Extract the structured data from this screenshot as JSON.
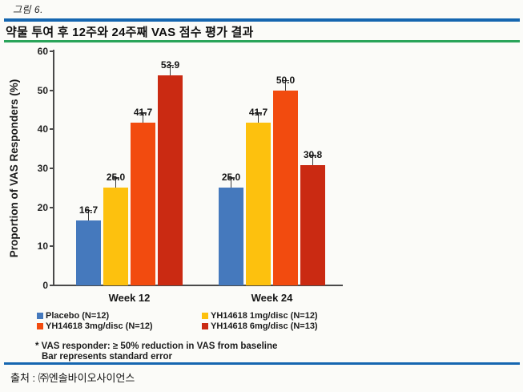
{
  "figure": {
    "caption": "그림 6.",
    "title": "약물 투여 후 12주와 24주째 VAS 점수 평가 결과",
    "source": "출처 : ㈜엔솔바이오사이언스"
  },
  "footnotes": {
    "line1": "* VAS responder: ≥ 50% reduction in VAS from baseline",
    "line2": "Bar represents standard error"
  },
  "rule_colors": {
    "top_blue": "#1566b0",
    "green": "#2aa45a",
    "bottom_blue": "#1566b0"
  },
  "chart_data": {
    "type": "bar",
    "title": "",
    "categories": [
      "Week 12",
      "Week 24"
    ],
    "series": [
      {
        "name": "Placebo (N=12)",
        "color": "#4579bd",
        "values": [
          16.7,
          25.0
        ]
      },
      {
        "name": "YH14618 1mg/disc (N=12)",
        "color": "#fdc10e",
        "values": [
          25.0,
          41.7
        ]
      },
      {
        "name": "YH14618 3mg/disc (N=12)",
        "color": "#f24b0f",
        "values": [
          41.7,
          50.0
        ]
      },
      {
        "name": "YH14618 6mg/disc (N=13)",
        "color": "#ca2a12",
        "values": [
          53.9,
          30.8
        ]
      }
    ],
    "xlabel": "",
    "ylabel": "Proportion of VAS Responders (%)",
    "ylim": [
      0,
      60
    ],
    "yticks": [
      0,
      10,
      20,
      30,
      40,
      50,
      60
    ],
    "grid": false,
    "legend_position": "bottom",
    "error_bars": "standard error shown as whisker caps on each bar",
    "value_label_format": "one decimal place"
  }
}
